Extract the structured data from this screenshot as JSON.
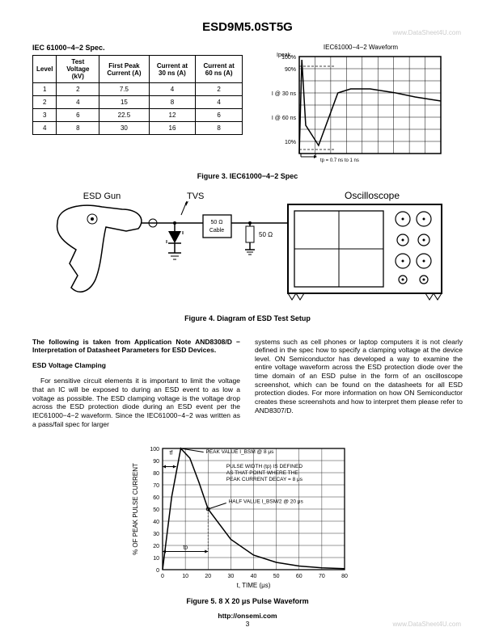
{
  "header": {
    "title": "ESD9M5.0ST5G"
  },
  "watermarks": {
    "top": "www.DataSheet4U.com",
    "bottom": "www.DataSheet4U.com"
  },
  "spec_table": {
    "title": "IEC 61000−4−2 Spec.",
    "columns": [
      "Level",
      "Test Voltage (kV)",
      "First Peak Current (A)",
      "Current at 30 ns (A)",
      "Current at 60 ns (A)"
    ],
    "rows": [
      [
        "1",
        "2",
        "7.5",
        "4",
        "2"
      ],
      [
        "2",
        "4",
        "15",
        "8",
        "4"
      ],
      [
        "3",
        "6",
        "22.5",
        "12",
        "6"
      ],
      [
        "4",
        "8",
        "30",
        "16",
        "8"
      ]
    ]
  },
  "fig3": {
    "title": "IEC61000−4−2 Waveform",
    "caption": "Figure 3. IEC61000−4−2 Spec",
    "ylabel": "Ipeak",
    "ylabels": [
      "100%",
      "90%",
      "",
      "I @ 30 ns",
      "",
      "I @ 60 ns",
      "",
      "10%"
    ],
    "xnote": "tp = 0.7 ns to 1 ns",
    "bg": "#ffffff",
    "grid": "#000000",
    "stroke": "#000000",
    "line_w": 1.5,
    "curves": {
      "main": [
        [
          0,
          120
        ],
        [
          4,
          4
        ],
        [
          10,
          85
        ],
        [
          30,
          110
        ],
        [
          60,
          45
        ],
        [
          80,
          40
        ],
        [
          110,
          40
        ],
        [
          150,
          45
        ],
        [
          180,
          50
        ],
        [
          220,
          55
        ]
      ],
      "dash1_y": 12,
      "dash2_y": 115
    }
  },
  "fig4": {
    "caption": "Figure 4. Diagram of ESD Test Setup",
    "labels": {
      "gun": "ESD Gun",
      "tvs": "TVS",
      "cable": "50 Ω\nCable",
      "res": "50 Ω",
      "scope": "Oscilloscope"
    },
    "stroke": "#000000"
  },
  "text": {
    "left_bold1": "The following is taken from Application Note AND8308/D − Interpretation of Datasheet Parameters for ESD Devices.",
    "left_h": "ESD Voltage Clamping",
    "left_p": "For sensitive circuit elements it is important to limit the voltage that an IC will be exposed to during an ESD event to as low a voltage as possible. The ESD clamping voltage is the voltage drop across the ESD protection diode during an ESD event per the IEC61000−4−2 waveform. Since the IEC61000−4−2 was written as a pass/fail spec for larger",
    "right_p": "systems such as cell phones or laptop computers it is not clearly defined in the spec how to specify a clamping voltage at the device level. ON Semiconductor has developed a way to examine the entire voltage waveform across the ESD protection diode over the time domain of an ESD pulse in the form of an oscilloscope screenshot, which can be found on the datasheets for all ESD protection diodes. For more information on how ON Semiconductor creates these screenshots and how to interpret them please refer to AND8307/D."
  },
  "fig5": {
    "caption": "Figure 5. 8 X 20 μs Pulse Waveform",
    "xlabel": "t, TIME (μs)",
    "ylabel": "% OF PEAK PULSE CURRENT",
    "xticks": [
      0,
      10,
      20,
      30,
      40,
      50,
      60,
      70,
      80
    ],
    "yticks": [
      0,
      10,
      20,
      30,
      40,
      50,
      60,
      70,
      80,
      90,
      100
    ],
    "bg": "#ffffff",
    "grid": "#000000",
    "stroke": "#000000",
    "line_w": 1.5,
    "curve": [
      [
        0,
        0
      ],
      [
        4,
        60
      ],
      [
        8,
        100
      ],
      [
        12,
        92
      ],
      [
        16,
        72
      ],
      [
        20,
        50
      ],
      [
        30,
        25
      ],
      [
        40,
        12
      ],
      [
        50,
        6
      ],
      [
        60,
        3
      ],
      [
        70,
        1.5
      ],
      [
        80,
        0.8
      ]
    ],
    "ann": {
      "peak": "PEAK VALUE I_BSM @ 8 μs",
      "pw": "PULSE WIDTH (tp) IS DEFINED\nAS THAT POINT WHERE THE\nPEAK CURRENT DECAY = 8 μs",
      "half": "HALF VALUE I_BSM/2 @ 20 μs",
      "tf": "tf",
      "tp": "tp"
    }
  },
  "footer": {
    "url": "http://onsemi.com",
    "page": "3"
  }
}
